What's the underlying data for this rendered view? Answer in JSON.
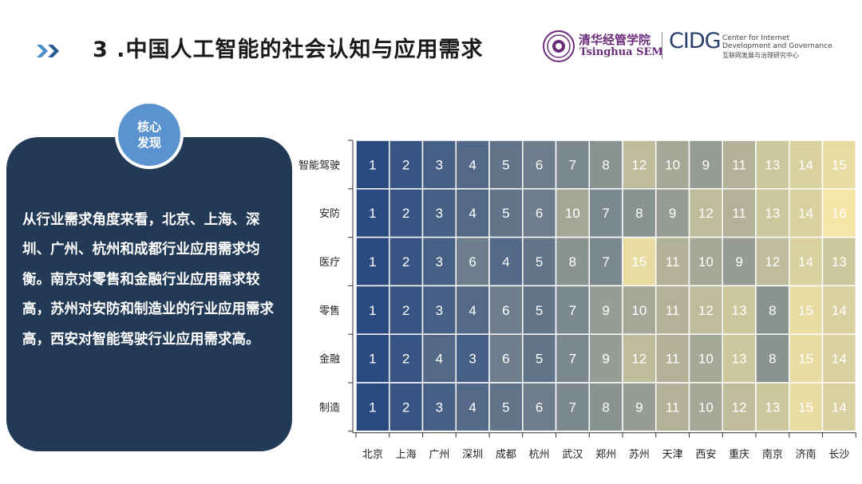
{
  "header": {
    "title": "3 .中国人工智能的社会认知与应用需求"
  },
  "logos": {
    "sem_cn": "清华经管学院",
    "sem_en": "Tsinghua SEM",
    "cidg": "CIDG",
    "cidg_en_line1": "Center for Internet",
    "cidg_en_line2": "Development and Governance",
    "cidg_cn": "互联网发展与治理研究中心"
  },
  "finding": {
    "badge_line1": "核心",
    "badge_line2": "发现",
    "text": "从行业需求角度来看，北京、上海、深圳、广州、杭州和成都行业应用需求均衡。南京对零售和金融行业应用需求较高，苏州对安防和制造业的行业应用需求高，西安对智能驾驶行业应用需求高。"
  },
  "chart_data": {
    "type": "heatmap",
    "x": [
      "北京",
      "上海",
      "广州",
      "深圳",
      "成都",
      "杭州",
      "武汉",
      "郑州",
      "苏州",
      "天津",
      "西安",
      "重庆",
      "南京",
      "济南",
      "长沙"
    ],
    "y": [
      "智能驾驶",
      "安防",
      "医疗",
      "零售",
      "金融",
      "制造"
    ],
    "values": [
      [
        1,
        2,
        3,
        4,
        5,
        6,
        7,
        8,
        12,
        10,
        9,
        11,
        13,
        14,
        15
      ],
      [
        1,
        2,
        3,
        4,
        5,
        6,
        10,
        7,
        8,
        9,
        12,
        11,
        13,
        14,
        16
      ],
      [
        1,
        2,
        3,
        6,
        4,
        5,
        8,
        7,
        15,
        11,
        10,
        9,
        12,
        14,
        13
      ],
      [
        1,
        2,
        3,
        4,
        6,
        5,
        7,
        9,
        10,
        11,
        12,
        13,
        8,
        15,
        14
      ],
      [
        1,
        2,
        4,
        3,
        6,
        5,
        7,
        9,
        12,
        11,
        10,
        13,
        8,
        15,
        14
      ],
      [
        1,
        2,
        3,
        4,
        5,
        6,
        7,
        8,
        9,
        11,
        10,
        12,
        13,
        15,
        14
      ]
    ],
    "value_range": [
      1,
      16
    ],
    "color_low": "#2b4a7f",
    "color_high": "#f5e6a6"
  }
}
